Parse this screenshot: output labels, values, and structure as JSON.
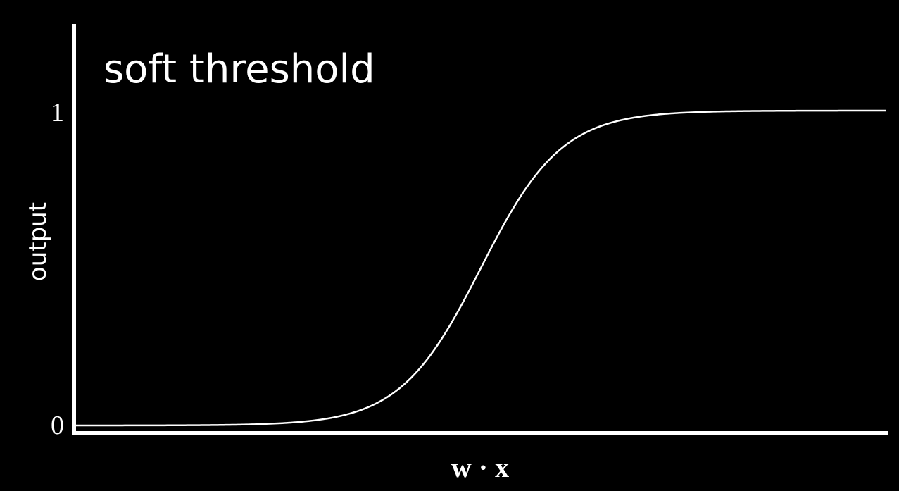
{
  "chart_data": {
    "type": "line",
    "title": "soft threshold",
    "xlabel": "w · x",
    "ylabel": "output",
    "y_ticks": [
      "0",
      "1"
    ],
    "ylim": [
      0,
      1
    ],
    "grid": false,
    "series": [
      {
        "function": "logistic sigmoid",
        "x": [
          -10,
          -9,
          -8,
          -7,
          -6,
          -5,
          -4,
          -3,
          -2,
          -1,
          0,
          1,
          2,
          3,
          4,
          5,
          6,
          7,
          8,
          9,
          10
        ],
        "values": [
          0.0,
          0.0,
          0.0,
          0.001,
          0.002,
          0.007,
          0.018,
          0.047,
          0.119,
          0.269,
          0.5,
          0.731,
          0.881,
          0.953,
          0.982,
          0.993,
          0.998,
          0.999,
          1.0,
          1.0,
          1.0
        ]
      }
    ]
  },
  "colors": {
    "background": "#000000",
    "foreground": "#ffffff"
  }
}
